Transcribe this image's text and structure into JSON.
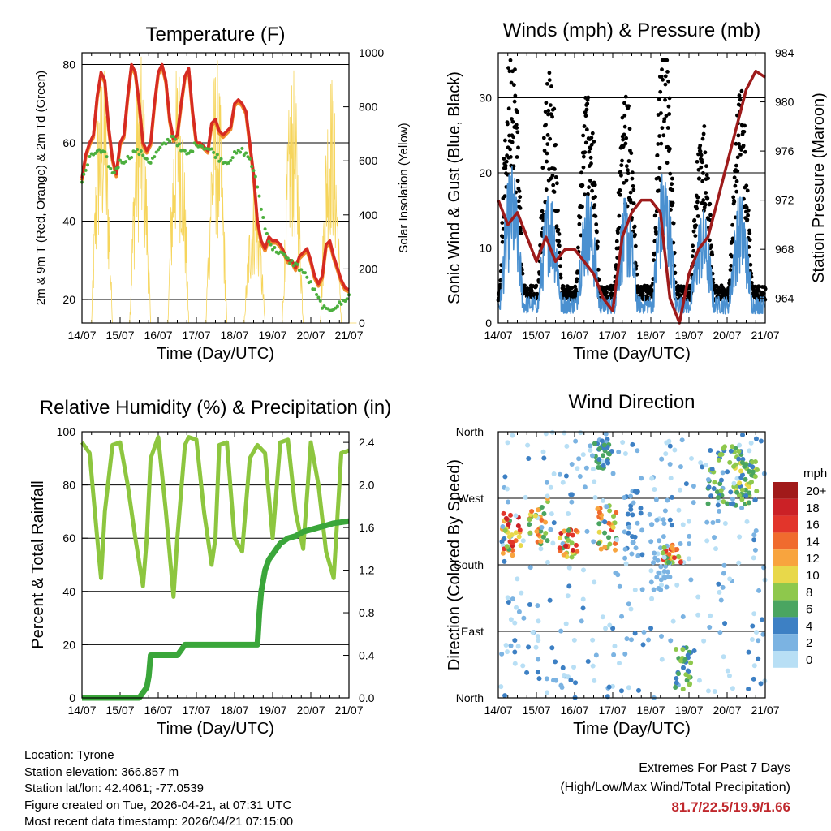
{
  "chart_data": [
    {
      "id": "temperature",
      "type": "line",
      "title": "Temperature (F)",
      "xlabel": "Time (Day/UTC)",
      "ylabel": "2m & 9m T (Red, Orange) & 2m Td (Green)",
      "ylabel_right": "Solar Insolation (Yellow)",
      "x_ticks": [
        "14/07",
        "15/07",
        "16/07",
        "17/07",
        "18/07",
        "19/07",
        "20/07",
        "21/07"
      ],
      "xlim": [
        0,
        7
      ],
      "ylim": [
        14,
        83
      ],
      "y_ticks": [
        20,
        40,
        60,
        80
      ],
      "y2lim": [
        0,
        1000
      ],
      "y2_ticks": [
        0,
        200,
        400,
        600,
        800,
        1000
      ],
      "gridlines": [
        20,
        40,
        60,
        80
      ],
      "series": [
        {
          "name": "2m T",
          "color": "#d62a22",
          "x": [
            0,
            0.1,
            0.2,
            0.3,
            0.4,
            0.5,
            0.6,
            0.7,
            0.8,
            0.9,
            1,
            1.1,
            1.2,
            1.3,
            1.4,
            1.5,
            1.6,
            1.7,
            1.8,
            1.9,
            2,
            2.1,
            2.2,
            2.3,
            2.4,
            2.5,
            2.6,
            2.7,
            2.8,
            2.9,
            3,
            3.1,
            3.2,
            3.3,
            3.4,
            3.5,
            3.6,
            3.7,
            3.8,
            3.9,
            4,
            4.1,
            4.2,
            4.3,
            4.4,
            4.5,
            4.6,
            4.7,
            4.8,
            4.9,
            5,
            5.1,
            5.2,
            5.3,
            5.4,
            5.5,
            5.6,
            5.7,
            5.8,
            5.9,
            6,
            6.1,
            6.2,
            6.3,
            6.4,
            6.5,
            6.6,
            6.7,
            6.8,
            6.9,
            7
          ],
          "values": [
            51,
            57,
            60,
            62,
            72,
            78,
            76,
            64,
            56,
            52,
            60,
            62,
            72,
            80,
            78,
            70,
            60,
            58,
            60,
            70,
            78,
            80,
            76,
            66,
            61,
            62,
            70,
            77,
            79,
            68,
            60,
            60,
            59,
            58,
            65,
            66,
            63,
            62,
            63,
            64,
            70,
            71,
            70,
            68,
            60,
            52,
            40,
            35,
            33,
            36,
            35,
            35,
            34,
            32,
            30,
            30,
            28,
            31,
            32,
            33,
            30,
            26,
            24,
            26,
            34,
            35,
            31,
            28,
            25,
            23,
            22.5
          ]
        },
        {
          "name": "2m Td",
          "color": "#4caf3e",
          "x": [
            0,
            0.2,
            0.4,
            0.6,
            0.8,
            1,
            1.2,
            1.4,
            1.6,
            1.8,
            2,
            2.2,
            2.4,
            2.6,
            2.8,
            3,
            3.2,
            3.4,
            3.6,
            3.8,
            4,
            4.2,
            4.4,
            4.6,
            4.8,
            5,
            5.2,
            5.4,
            5.6,
            5.8,
            6,
            6.2,
            6.4,
            6.6,
            6.8,
            7
          ],
          "values": [
            50,
            56,
            58,
            57,
            52,
            55,
            56,
            58,
            57,
            55,
            58,
            60,
            62,
            58,
            57,
            60,
            59,
            58,
            56,
            55,
            57,
            58,
            56,
            49,
            38,
            33,
            32,
            30,
            29,
            27,
            24,
            20,
            17,
            18,
            19,
            21
          ]
        }
      ]
    },
    {
      "id": "winds",
      "type": "scatter",
      "title": "Winds (mph) & Pressure (mb)",
      "xlabel": "Time (Day/UTC)",
      "ylabel": "Sonic Wind & Gust (Blue, Black)",
      "ylabel_right": "Station Pressure (Maroon)",
      "x_ticks": [
        "14/07",
        "15/07",
        "16/07",
        "17/07",
        "18/07",
        "19/07",
        "20/07",
        "21/07"
      ],
      "xlim": [
        0,
        7
      ],
      "ylim": [
        0,
        36
      ],
      "y_ticks": [
        0,
        10,
        20,
        30
      ],
      "y2lim": [
        962,
        984
      ],
      "y2_ticks": [
        964,
        968,
        972,
        976,
        980,
        984
      ],
      "gridlines": [
        10,
        20,
        30
      ],
      "series": [
        {
          "name": "Station Pressure",
          "color": "#9e1b1b",
          "x": [
            0,
            0.25,
            0.5,
            0.75,
            1,
            1.25,
            1.5,
            1.75,
            2,
            2.25,
            2.5,
            2.75,
            3,
            3.25,
            3.5,
            3.75,
            4,
            4.25,
            4.5,
            4.75,
            5,
            5.25,
            5.5,
            5.75,
            6,
            6.25,
            6.5,
            6.75,
            7
          ],
          "values": [
            972,
            970,
            971,
            969,
            967,
            969,
            967,
            968,
            968,
            967,
            966,
            964,
            963,
            969,
            971,
            972,
            972,
            971,
            964,
            962,
            966,
            968,
            969,
            972,
            975,
            978,
            981,
            982.5,
            982
          ]
        }
      ]
    },
    {
      "id": "humidity",
      "type": "line",
      "title": "Relative Humidity (%) & Precipitation (in)",
      "xlabel": "Time (Day/UTC)",
      "ylabel": "Percent & Total Rainfall",
      "x_ticks": [
        "14/07",
        "15/07",
        "16/07",
        "17/07",
        "18/07",
        "19/07",
        "20/07",
        "21/07"
      ],
      "xlim": [
        0,
        7
      ],
      "ylim": [
        0,
        100
      ],
      "y_ticks": [
        0,
        20,
        40,
        60,
        80,
        100
      ],
      "y2lim": [
        0,
        2.5
      ],
      "y2_ticks": [
        "0.0",
        "0.4",
        "0.8",
        "1.2",
        "1.6",
        "2.0",
        "2.4"
      ],
      "gridlines": [
        20,
        40,
        60,
        80
      ],
      "series": [
        {
          "name": "Relative Humidity",
          "color": "#8dc63f",
          "x": [
            0,
            0.2,
            0.4,
            0.5,
            0.6,
            0.8,
            1,
            1.2,
            1.4,
            1.6,
            1.7,
            1.8,
            2,
            2.2,
            2.4,
            2.5,
            2.7,
            2.8,
            3,
            3.2,
            3.4,
            3.5,
            3.6,
            3.8,
            4,
            4.2,
            4.4,
            4.6,
            4.8,
            5,
            5.2,
            5.4,
            5.6,
            5.8,
            6,
            6.2,
            6.4,
            6.6,
            6.8,
            7
          ],
          "values": [
            96,
            92,
            60,
            45,
            70,
            95,
            96,
            80,
            60,
            42,
            60,
            90,
            98,
            70,
            38,
            60,
            95,
            98,
            97,
            70,
            50,
            60,
            95,
            96,
            60,
            55,
            90,
            95,
            92,
            60,
            96,
            97,
            70,
            56,
            96,
            80,
            55,
            45,
            92,
            93
          ]
        },
        {
          "name": "Total Precipitation",
          "color": "#3aa63a",
          "x": [
            0,
            1.5,
            1.6,
            1.7,
            1.75,
            1.8,
            2.5,
            2.6,
            2.7,
            3.5,
            4.6,
            4.65,
            4.7,
            4.75,
            4.8,
            4.9,
            5,
            5.1,
            5.2,
            5.4,
            5.6,
            5.8,
            6,
            6.2,
            6.4,
            6.6,
            7
          ],
          "values": [
            0,
            0,
            0.05,
            0.1,
            0.2,
            0.4,
            0.4,
            0.45,
            0.5,
            0.5,
            0.5,
            0.8,
            1.0,
            1.1,
            1.2,
            1.3,
            1.35,
            1.4,
            1.45,
            1.5,
            1.52,
            1.56,
            1.58,
            1.6,
            1.62,
            1.64,
            1.66
          ]
        }
      ]
    },
    {
      "id": "direction",
      "type": "scatter",
      "title": "Wind Direction",
      "xlabel": "Time (Day/UTC)",
      "ylabel": "Direction (Colored By Speed)",
      "x_ticks": [
        "14/07",
        "15/07",
        "16/07",
        "17/07",
        "18/07",
        "19/07",
        "20/07",
        "21/07"
      ],
      "xlim": [
        0,
        7
      ],
      "ylim": [
        0,
        360
      ],
      "y_ticks": [
        "North",
        "East",
        "South",
        "West",
        "North"
      ],
      "gridlines": [
        90,
        180,
        270
      ],
      "legend_title": "mph",
      "legend_labels": [
        "20+",
        "18",
        "16",
        "14",
        "12",
        "10",
        "8",
        "6",
        "4",
        "2",
        "0"
      ],
      "legend_colors": [
        "#a11a1a",
        "#cb2126",
        "#e2352b",
        "#f06b2e",
        "#f8a43e",
        "#e8d84a",
        "#8ec84c",
        "#4aa561",
        "#3d80c4",
        "#7bb3e2",
        "#b8dff5"
      ]
    }
  ],
  "footer": {
    "location": "Location: Tyrone",
    "elevation": "Station elevation: 366.857 m",
    "latlon": "Station lat/lon: 42.4061; -77.0539",
    "created": "Figure created on Tue, 2026-04-21, at 07:31 UTC",
    "recent": "Most recent data timestamp: 2026/04/21 07:15:00",
    "extremes_title": "Extremes For Past 7 Days",
    "extremes_subtitle": "(High/Low/Max Wind/Total Precipitation)",
    "extremes_value": "81.7/22.5/19.9/1.66"
  }
}
